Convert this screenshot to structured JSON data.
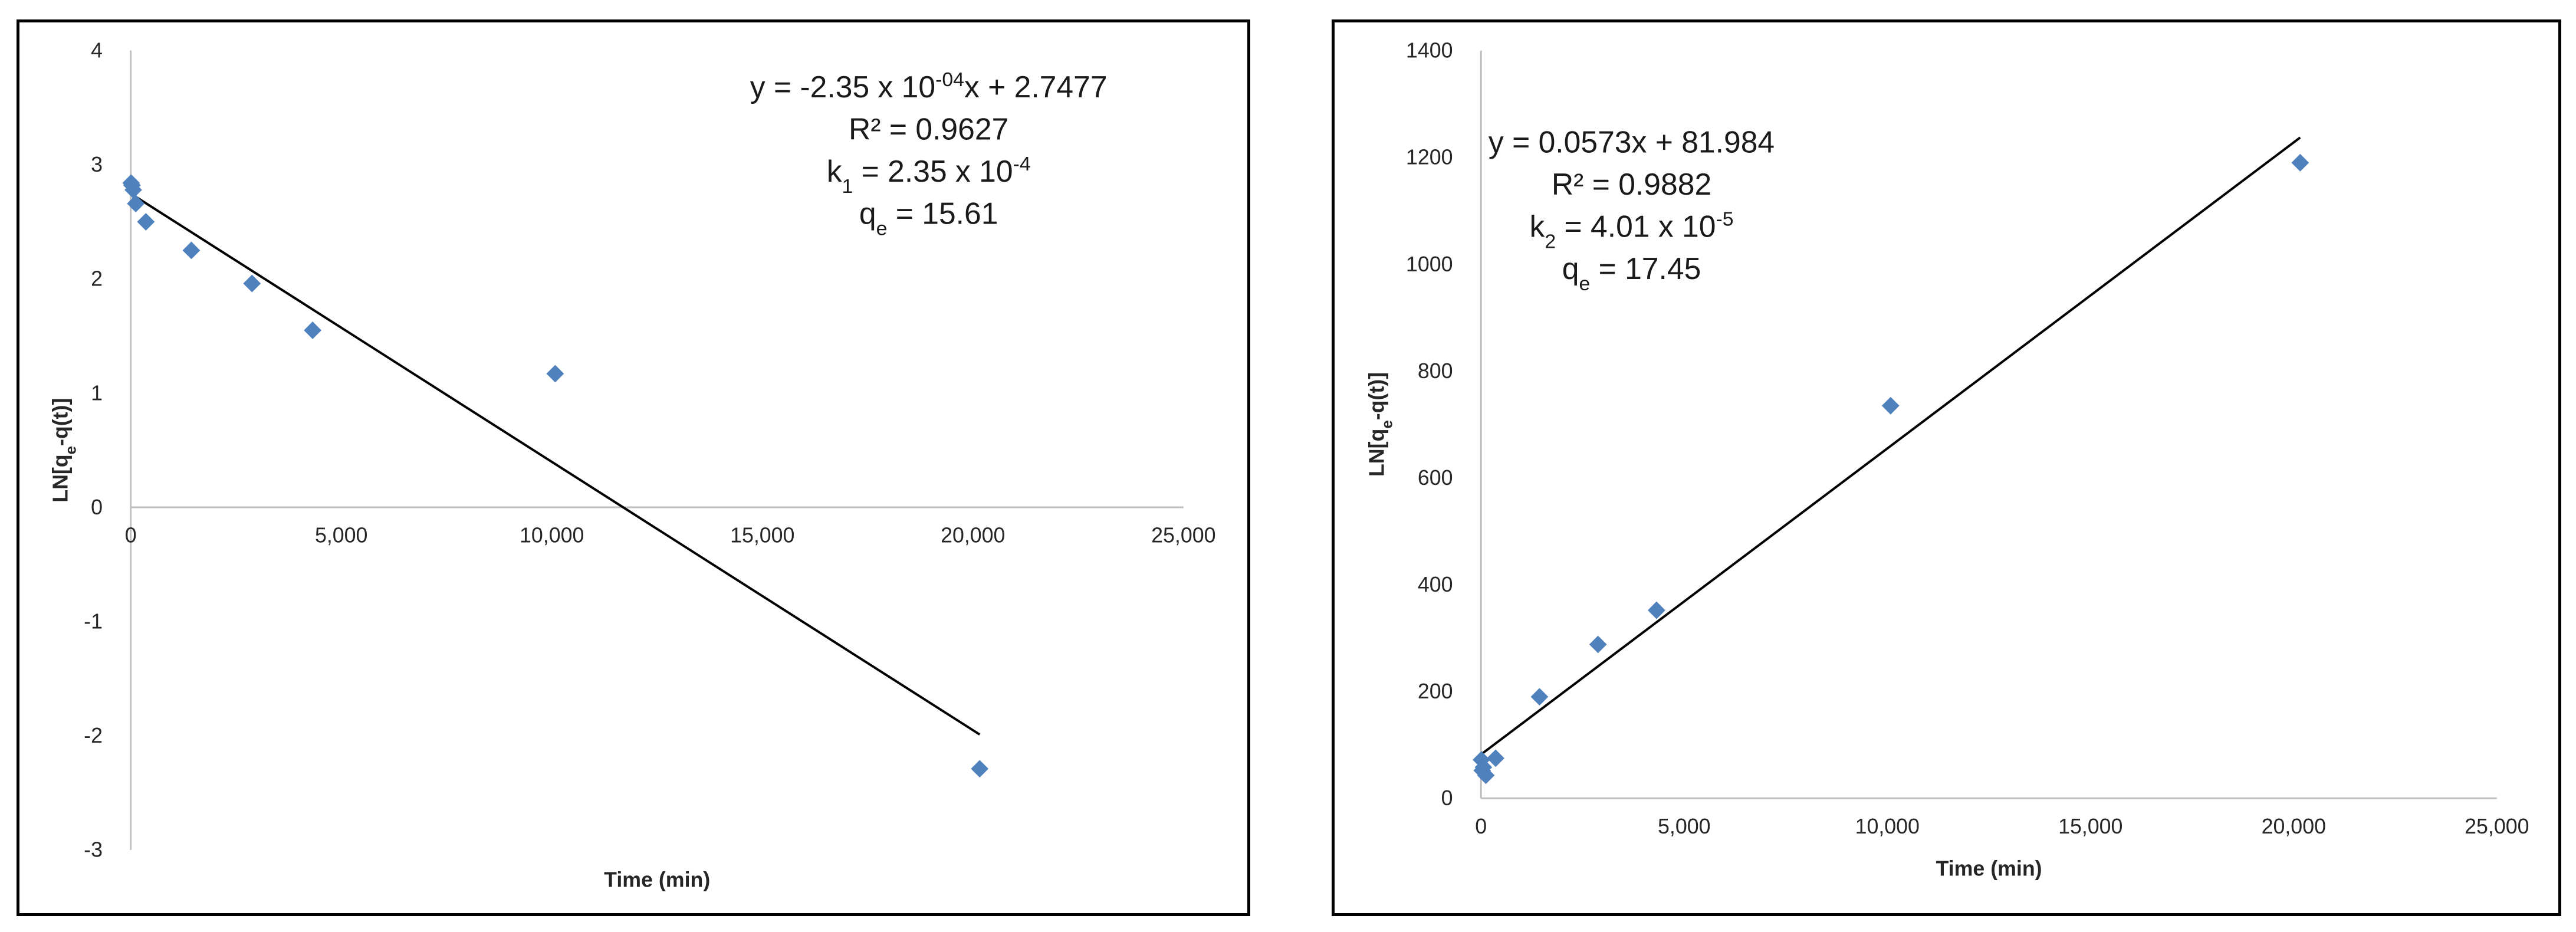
{
  "chart_data": [
    {
      "type": "scatter",
      "xlabel": "Time (min)",
      "ylabel": "LN[qe-q(t)]",
      "ylabel_parts": {
        "main": "LN[q",
        "sub": "e",
        "tail": "-q(t)]"
      },
      "xlim": [
        0,
        25000
      ],
      "ylim": [
        -3,
        4
      ],
      "x_ticks": [
        0,
        5000,
        10000,
        15000,
        20000,
        25000
      ],
      "x_tick_labels": [
        "0",
        "5,000",
        "10,000",
        "15,000",
        "20,000",
        "25,000"
      ],
      "y_ticks": [
        -3,
        -2,
        -1,
        0,
        1,
        2,
        3,
        4
      ],
      "y_tick_labels": [
        "-3",
        "-2",
        "-1",
        "0",
        "1",
        "2",
        "3",
        "4"
      ],
      "grid": false,
      "marker_color": "#4f81bd",
      "trendline_color": "#000000",
      "series": [
        {
          "x": [
            10,
            30,
            60,
            120,
            360,
            1440,
            2880,
            4320,
            10080,
            20160
          ],
          "y": [
            2.84,
            2.82,
            2.78,
            2.66,
            2.5,
            2.25,
            1.96,
            1.55,
            1.17,
            -2.29
          ]
        }
      ],
      "trendline": {
        "slope": -0.000235,
        "intercept": 2.7477,
        "x_range": [
          0,
          20160
        ]
      },
      "annotations": [
        {
          "parts": [
            {
              "t": "y = -2.35 x 10"
            },
            {
              "t": "-04",
              "sup": true
            },
            {
              "t": "x + 2.7477"
            }
          ]
        },
        {
          "parts": [
            {
              "t": "R² = 0.9627"
            }
          ]
        },
        {
          "parts": [
            {
              "t": "k"
            },
            {
              "t": "1",
              "sub": true
            },
            {
              "t": " = 2.35 x 10"
            },
            {
              "t": "-4",
              "sup": true
            }
          ]
        },
        {
          "parts": [
            {
              "t": "q"
            },
            {
              "t": "e",
              "sub": true
            },
            {
              "t": " = 15.61"
            }
          ]
        }
      ]
    },
    {
      "type": "scatter",
      "xlabel": "Time (min)",
      "ylabel": "LN[qe-q(t)]",
      "ylabel_parts": {
        "main": "LN[q",
        "sub": "e",
        "tail": "-q(t)]"
      },
      "xlim": [
        0,
        25000
      ],
      "ylim": [
        0,
        1400
      ],
      "x_ticks": [
        0,
        5000,
        10000,
        15000,
        20000,
        25000
      ],
      "x_tick_labels": [
        "0",
        "5,000",
        "10,000",
        "15,000",
        "20,000",
        "25,000"
      ],
      "y_ticks": [
        0,
        200,
        400,
        600,
        800,
        1000,
        1200,
        1400
      ],
      "y_tick_labels": [
        "0",
        "200",
        "400",
        "600",
        "800",
        "1000",
        "1200",
        "1400"
      ],
      "grid": false,
      "marker_color": "#4f81bd",
      "trendline_color": "#000000",
      "series": [
        {
          "x": [
            10,
            30,
            60,
            120,
            360,
            1440,
            2880,
            4320,
            10080,
            20160
          ],
          "y": [
            72,
            52,
            58,
            43,
            75,
            190,
            288,
            352,
            735,
            1190
          ]
        }
      ],
      "trendline": {
        "slope": 0.0573,
        "intercept": 81.984,
        "x_range": [
          0,
          20160
        ]
      },
      "annotations": [
        {
          "parts": [
            {
              "t": "y = 0.0573x + 81.984"
            }
          ]
        },
        {
          "parts": [
            {
              "t": "R² = 0.9882"
            }
          ]
        },
        {
          "parts": [
            {
              "t": "k"
            },
            {
              "t": "2",
              "sub": true
            },
            {
              "t": " = 4.01 x 10"
            },
            {
              "t": "-5",
              "sup": true
            }
          ]
        },
        {
          "parts": [
            {
              "t": "q"
            },
            {
              "t": "e",
              "sub": true
            },
            {
              "t": " = 17.45"
            }
          ]
        }
      ]
    }
  ]
}
